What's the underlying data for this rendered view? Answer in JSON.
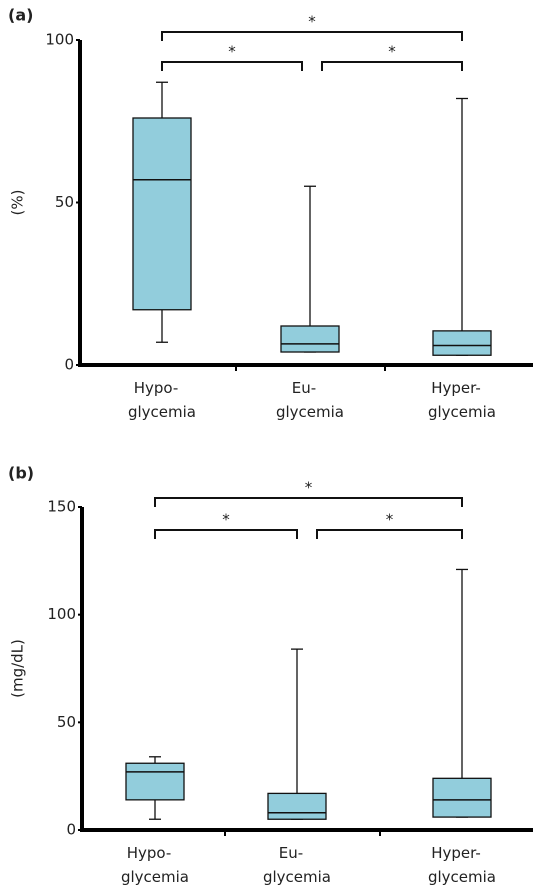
{
  "chart_data": [
    {
      "type": "box",
      "panel_label": "(a)",
      "y_label": "(%)",
      "categories": [
        "Hypo-\nglycemia",
        "Eu-\nglycemia",
        "Hyper-\nglycemia"
      ],
      "color": "#92cddc",
      "min": [
        7,
        4,
        3
      ],
      "q1": [
        17,
        4,
        3
      ],
      "median": [
        57,
        6.5,
        6
      ],
      "q3": [
        76,
        12,
        10.5
      ],
      "max": [
        87,
        55,
        82
      ],
      "ylim": [
        0,
        100
      ],
      "yticks": [
        0,
        50,
        100
      ],
      "annotations": [
        "*",
        "*",
        "*"
      ]
    },
    {
      "type": "box",
      "panel_label": "(b)",
      "y_label": "(mg/dL)",
      "categories": [
        "Hypo-\nglycemia",
        "Eu-\nglycemia",
        "Hyper-\nglycemia"
      ],
      "color": "#92cddc",
      "min": [
        5,
        5,
        6
      ],
      "q1": [
        14,
        5,
        6
      ],
      "median": [
        27,
        8,
        14
      ],
      "q3": [
        31,
        17,
        24
      ],
      "max": [
        34,
        84,
        121
      ],
      "ylim": [
        0,
        150
      ],
      "yticks": [
        0,
        50,
        100,
        150
      ],
      "annotations": [
        "*",
        "*",
        "*"
      ]
    }
  ]
}
